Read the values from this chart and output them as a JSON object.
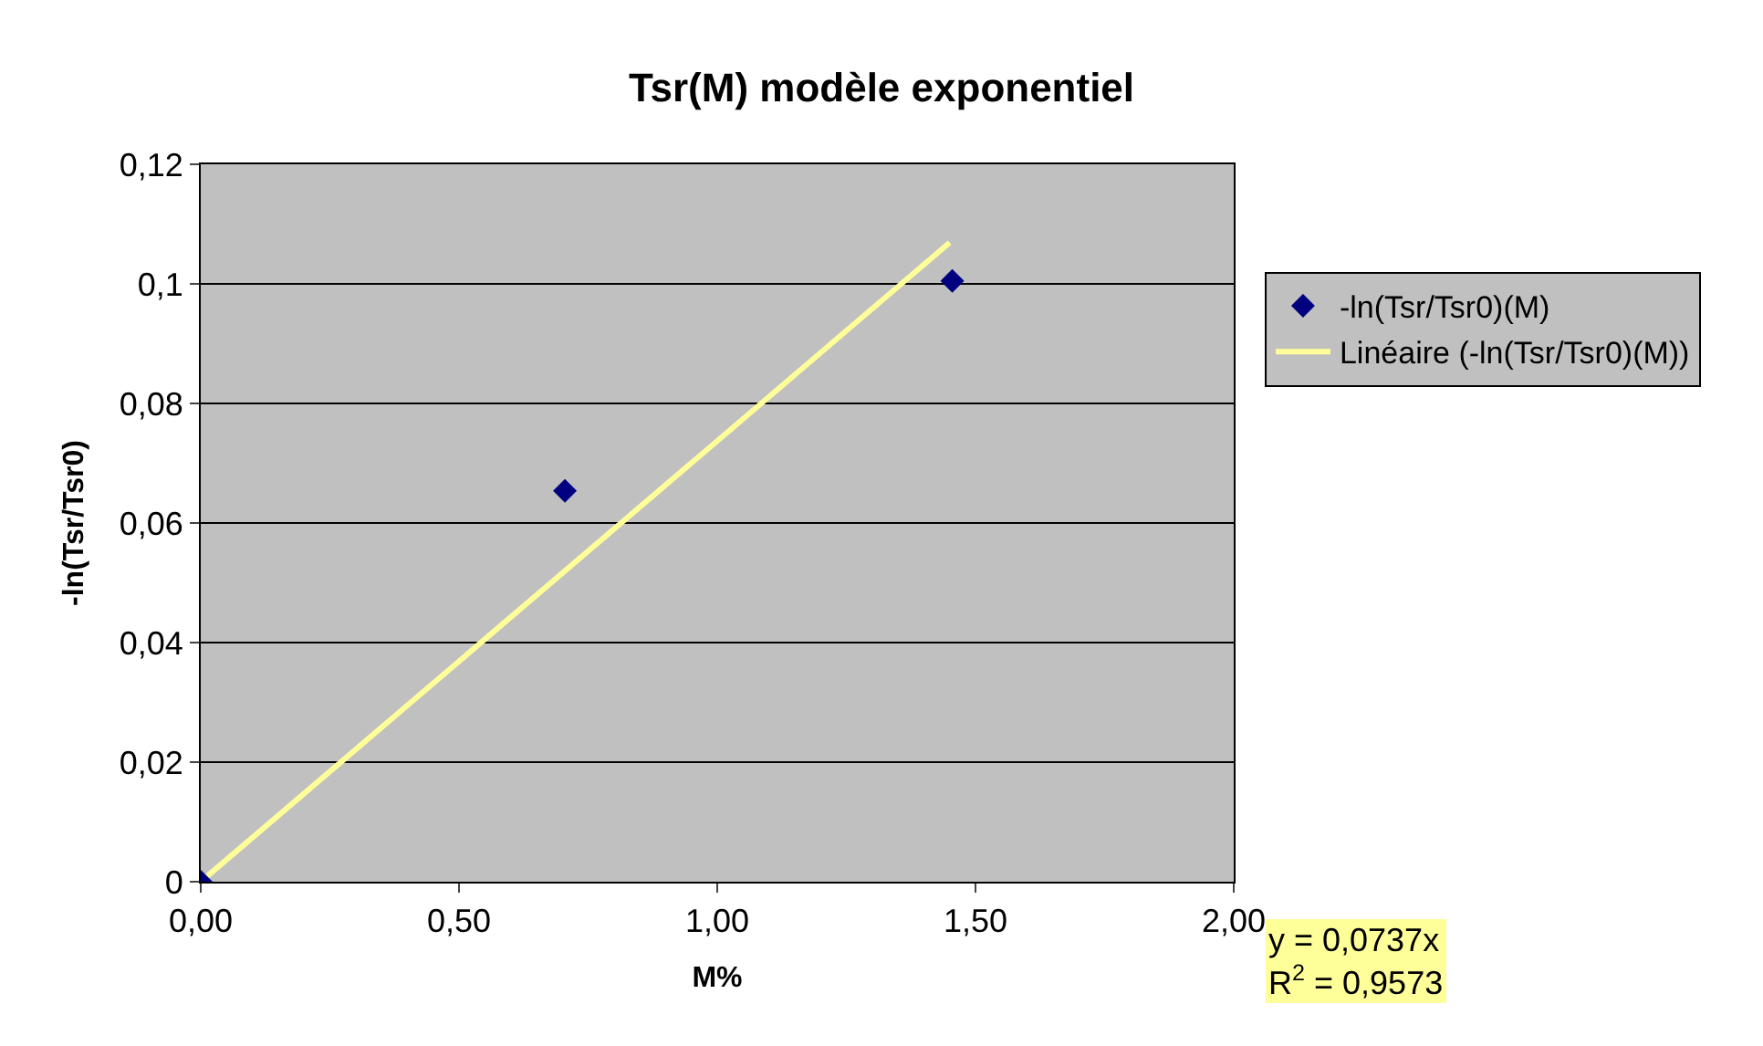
{
  "chart_data": {
    "type": "scatter",
    "title": "Tsr(M) modèle exponentiel",
    "xlabel": "M%",
    "ylabel": "-ln(Tsr/Tsr0)",
    "series": [
      {
        "name": "-ln(Tsr/Tsr0)(M)",
        "color": "#000080",
        "marker": "diamond",
        "x": [
          0,
          0.705,
          1.455
        ],
        "values": [
          0,
          0.0654,
          0.1005
        ]
      },
      {
        "name": "Linéaire (-ln(Tsr/Tsr0)(M))",
        "color": "#ffff99",
        "type": "line",
        "marker": "none",
        "line_style": "solid",
        "x": [
          0,
          1.45
        ],
        "values": [
          0,
          0.1069
        ]
      }
    ],
    "xlim": [
      0,
      2
    ],
    "xticks": [
      {
        "value": 0,
        "label": "0,00"
      },
      {
        "value": 0.5,
        "label": "0,50"
      },
      {
        "value": 1,
        "label": "1,00"
      },
      {
        "value": 1.5,
        "label": "1,50"
      },
      {
        "value": 2,
        "label": "2,00"
      }
    ],
    "ylim": [
      0,
      0.12
    ],
    "yticks": [
      0,
      {
        "value": 0.02,
        "label": "0,02"
      },
      {
        "value": 0.04,
        "label": "0,04"
      },
      {
        "value": 0.06,
        "label": "0,06"
      },
      {
        "value": 0.08,
        "label": "0,08"
      },
      {
        "value": 0.1,
        "label": "0,1"
      },
      {
        "value": 0.12,
        "label": "0,12"
      }
    ],
    "grid": "y",
    "legend": "right",
    "annotations": [
      "y = 0,0737x\nR$^{2}$ = 0,9573"
    ]
  }
}
